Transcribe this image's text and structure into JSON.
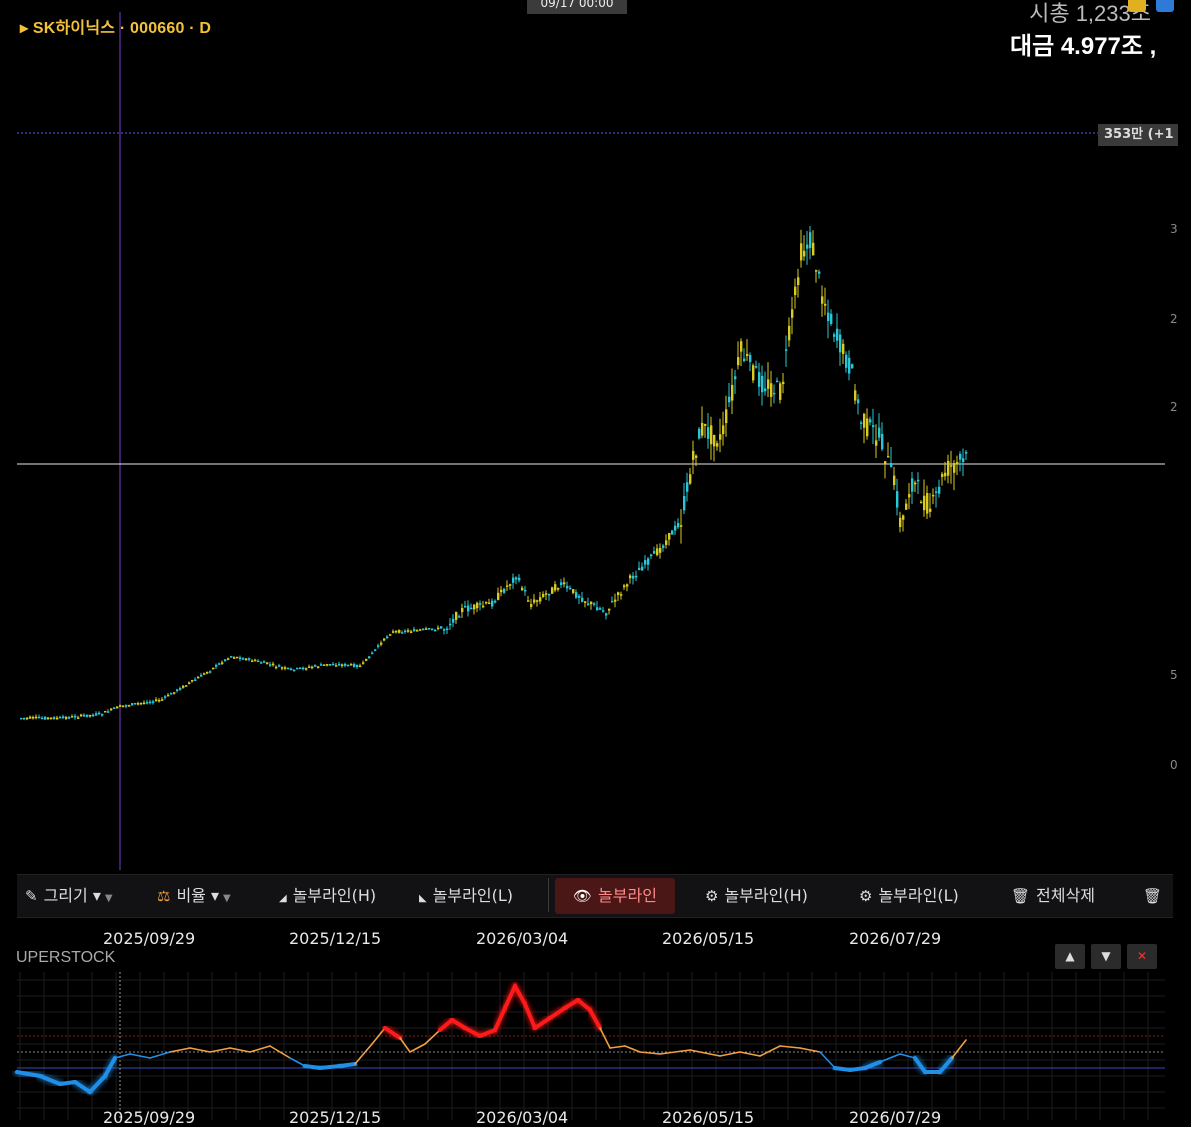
{
  "header": {
    "title": "▸ SK하이닉스 · 000660 · D",
    "crosshair_time": "09/17 00:00",
    "market_cap": "시총 1,233조",
    "turnover": "대금 4.977조 ,",
    "price_tag": "353만 (+1"
  },
  "toolbar": {
    "draw_label": "그리기 ▾",
    "ratio_label": "비율 ▾",
    "btn_high_line": "놀부라인(H)",
    "btn_low_line": "놀부라인(L)",
    "btn_show_line": "놀부라인",
    "btn_settings_high": "놀부라인(H)",
    "btn_settings_low": "놀부라인(L)",
    "btn_delete_all": "전체삭제"
  },
  "dates": [
    "2025/09/29",
    "2025/12/15",
    "2026/03/04",
    "2026/05/15",
    "2026/07/29"
  ],
  "indicator": {
    "name": "UPERSTOCK",
    "up_btn": "▲",
    "down_btn": "▼",
    "close_btn": "✕"
  },
  "icons": {
    "draw": "pencil-icon",
    "ratio": "scale-icon",
    "show": "eye-icon",
    "settings": "gear-icon",
    "delete": "trash-icon"
  },
  "colors": {
    "background": "#000000",
    "title": "#f3c23a",
    "candle_up": "#d9cc1f",
    "candle_down": "#28c8d8",
    "indicator_high": "#ff1a1a",
    "indicator_low": "#1f8fe8",
    "indicator_mid": "#f0a040",
    "crosshair": "#7a3fd0",
    "price_line": "#5a5aff"
  }
}
